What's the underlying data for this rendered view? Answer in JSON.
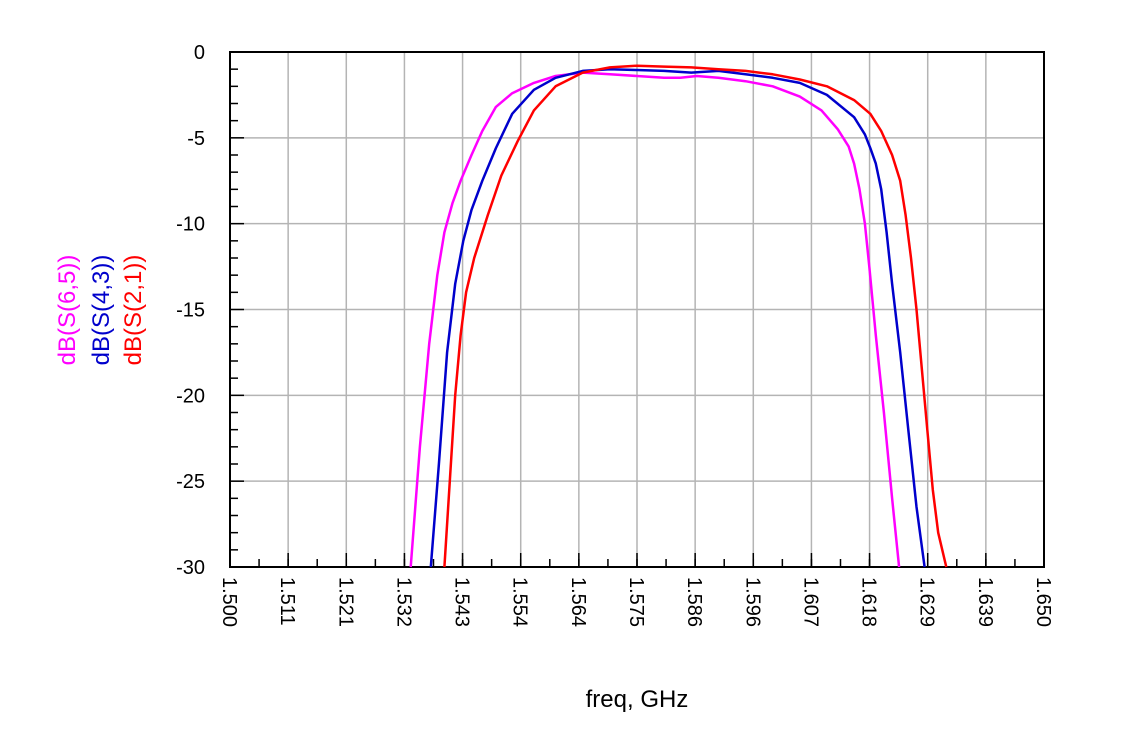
{
  "chart_data": {
    "type": "line",
    "title": "",
    "xlabel": "freq, GHz",
    "ylabel": "",
    "xlim": [
      1.5,
      1.65
    ],
    "ylim": [
      -30,
      0
    ],
    "x_ticks": [
      "1.500",
      "1.511",
      "1.521",
      "1.532",
      "1.543",
      "1.554",
      "1.564",
      "1.575",
      "1.586",
      "1.596",
      "1.607",
      "1.618",
      "1.629",
      "1.639",
      "1.650"
    ],
    "y_ticks": [
      "0",
      "-5",
      "-10",
      "-15",
      "-20",
      "-25",
      "-30"
    ],
    "grid": true,
    "legend_placement": "left, vertical",
    "series": [
      {
        "name": "dB(S(6,5))",
        "color": "#ff00ff",
        "x": [
          1.5333,
          1.535,
          1.5367,
          1.5382,
          1.5395,
          1.541,
          1.5425,
          1.5445,
          1.5465,
          1.549,
          1.552,
          1.556,
          1.56,
          1.565,
          1.57,
          1.575,
          1.58,
          1.583,
          1.586,
          1.59,
          1.595,
          1.6,
          1.605,
          1.609,
          1.612,
          1.614,
          1.615,
          1.616,
          1.617,
          1.6178,
          1.619,
          1.6205,
          1.622,
          1.6233
        ],
        "y": [
          -30,
          -23,
          -17,
          -13,
          -10.5,
          -8.8,
          -7.5,
          -6,
          -4.6,
          -3.2,
          -2.4,
          -1.8,
          -1.4,
          -1.2,
          -1.3,
          -1.4,
          -1.5,
          -1.5,
          -1.4,
          -1.5,
          -1.7,
          -2.0,
          -2.6,
          -3.4,
          -4.5,
          -5.5,
          -6.5,
          -8.0,
          -10.0,
          -12.5,
          -16.5,
          -21,
          -26,
          -30
        ]
      },
      {
        "name": "dB(S(4,3))",
        "color": "#0000cc",
        "x": [
          1.537,
          1.5385,
          1.54,
          1.5415,
          1.543,
          1.5445,
          1.5465,
          1.549,
          1.552,
          1.556,
          1.56,
          1.565,
          1.57,
          1.575,
          1.58,
          1.585,
          1.59,
          1.595,
          1.6,
          1.605,
          1.61,
          1.615,
          1.617,
          1.618,
          1.619,
          1.62,
          1.621,
          1.622,
          1.6235,
          1.625,
          1.6265,
          1.628
        ],
        "y": [
          -30,
          -24,
          -17.5,
          -13.5,
          -11,
          -9.2,
          -7.5,
          -5.6,
          -3.6,
          -2.2,
          -1.5,
          -1.1,
          -1.0,
          -1.05,
          -1.1,
          -1.2,
          -1.1,
          -1.3,
          -1.5,
          -1.8,
          -2.5,
          -3.8,
          -4.8,
          -5.6,
          -6.5,
          -8.0,
          -10.5,
          -13.5,
          -17.5,
          -22,
          -26.5,
          -30
        ]
      },
      {
        "name": "dB(S(2,1))",
        "color": "#ff0000",
        "x": [
          1.5395,
          1.5405,
          1.5415,
          1.5425,
          1.5435,
          1.545,
          1.5475,
          1.55,
          1.553,
          1.556,
          1.56,
          1.565,
          1.57,
          1.575,
          1.58,
          1.585,
          1.59,
          1.595,
          1.6,
          1.605,
          1.61,
          1.615,
          1.618,
          1.62,
          1.622,
          1.6235,
          1.6245,
          1.6255,
          1.6265,
          1.6275,
          1.6285,
          1.6295,
          1.6305,
          1.632
        ],
        "y": [
          -30,
          -25,
          -20,
          -16.5,
          -14,
          -12,
          -9.5,
          -7.2,
          -5.2,
          -3.4,
          -2.0,
          -1.2,
          -0.9,
          -0.8,
          -0.85,
          -0.9,
          -1.0,
          -1.1,
          -1.3,
          -1.6,
          -2.0,
          -2.8,
          -3.6,
          -4.6,
          -6.0,
          -7.5,
          -9.5,
          -12,
          -15,
          -18.5,
          -22,
          -25.5,
          -28,
          -30
        ]
      }
    ]
  }
}
